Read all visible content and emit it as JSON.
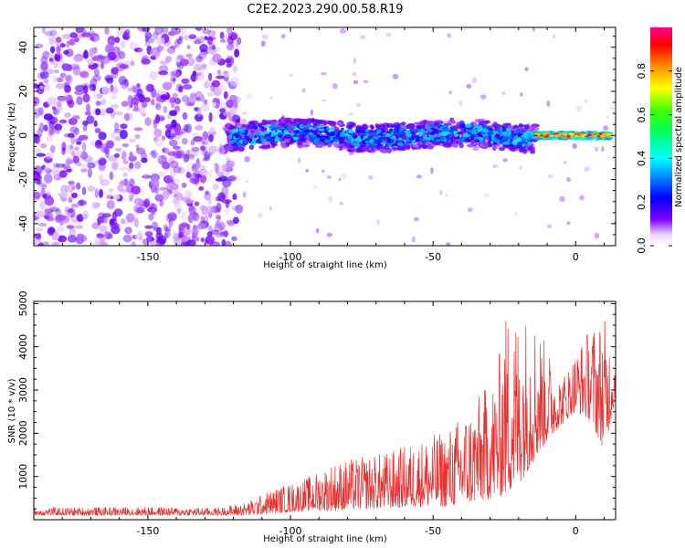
{
  "title": "C2E2.2023.290.00.58.R19",
  "colors": {
    "snr_line": "#e83030",
    "axis": "#000000"
  },
  "chart_data": [
    {
      "type": "heatmap",
      "xlabel": "Height of straight line (km)",
      "ylabel": "Frequency (Hz)",
      "xlim": [
        -190,
        14
      ],
      "ylim": [
        -50,
        49
      ],
      "xticks": [
        -150,
        -100,
        -50,
        0
      ],
      "xtick_labels": [
        "-150",
        "-100",
        "-50",
        "0"
      ],
      "yticks": [
        -40,
        -20,
        0,
        20,
        40
      ],
      "ytick_labels": [
        "-40",
        "-20",
        "0",
        "20",
        "40"
      ],
      "colorbar": {
        "label": "Normalized spectral amplitude",
        "range": [
          0,
          1
        ],
        "ticks": [
          0.0,
          0.2,
          0.4,
          0.6,
          0.8
        ],
        "tick_labels": [
          "0.0",
          "0.2",
          "0.4",
          "0.6",
          "0.8"
        ],
        "colormap": "gist_rainbow_r"
      },
      "features": [
        {
          "x_range": [
            -190,
            -120
          ],
          "freq_range": [
            -50,
            49
          ],
          "amplitude": 0.15
        },
        {
          "x_range": [
            -120,
            -15
          ],
          "freq_center": 0,
          "freq_halfwidth": 5,
          "amplitude": 0.35
        },
        {
          "x_range": [
            -15,
            12
          ],
          "freq_center": 0,
          "freq_halfwidth": 1.5,
          "amplitude": 0.9
        }
      ]
    },
    {
      "type": "line",
      "xlabel": "Height of straight line (km)",
      "ylabel": "SNR (10 * v/v)",
      "xlim": [
        -190,
        14
      ],
      "ylim": [
        0,
        5050
      ],
      "xticks": [
        -150,
        -100,
        -50,
        0
      ],
      "xtick_labels": [
        "-150",
        "-100",
        "-50",
        "0"
      ],
      "yticks": [
        1000,
        2000,
        3000,
        4000,
        5000
      ],
      "ytick_labels": [
        "1000",
        "2000",
        "3000",
        "4000",
        "5000"
      ],
      "envelope": {
        "x": [
          -190,
          -150,
          -125,
          -115,
          -105,
          -95,
          -85,
          -75,
          -65,
          -55,
          -45,
          -35,
          -28,
          -24,
          -20,
          -15,
          -10,
          -5,
          0,
          5,
          10,
          14
        ],
        "low": [
          100,
          100,
          100,
          100,
          150,
          200,
          200,
          250,
          250,
          300,
          300,
          400,
          500,
          600,
          800,
          1300,
          1800,
          2200,
          2500,
          2300,
          1600,
          2800
        ],
        "high": [
          280,
          300,
          280,
          420,
          750,
          950,
          1350,
          1450,
          1600,
          1850,
          2100,
          2800,
          3400,
          5000,
          4800,
          4900,
          4000,
          3300,
          3900,
          4500,
          4700,
          3700
        ]
      }
    }
  ]
}
